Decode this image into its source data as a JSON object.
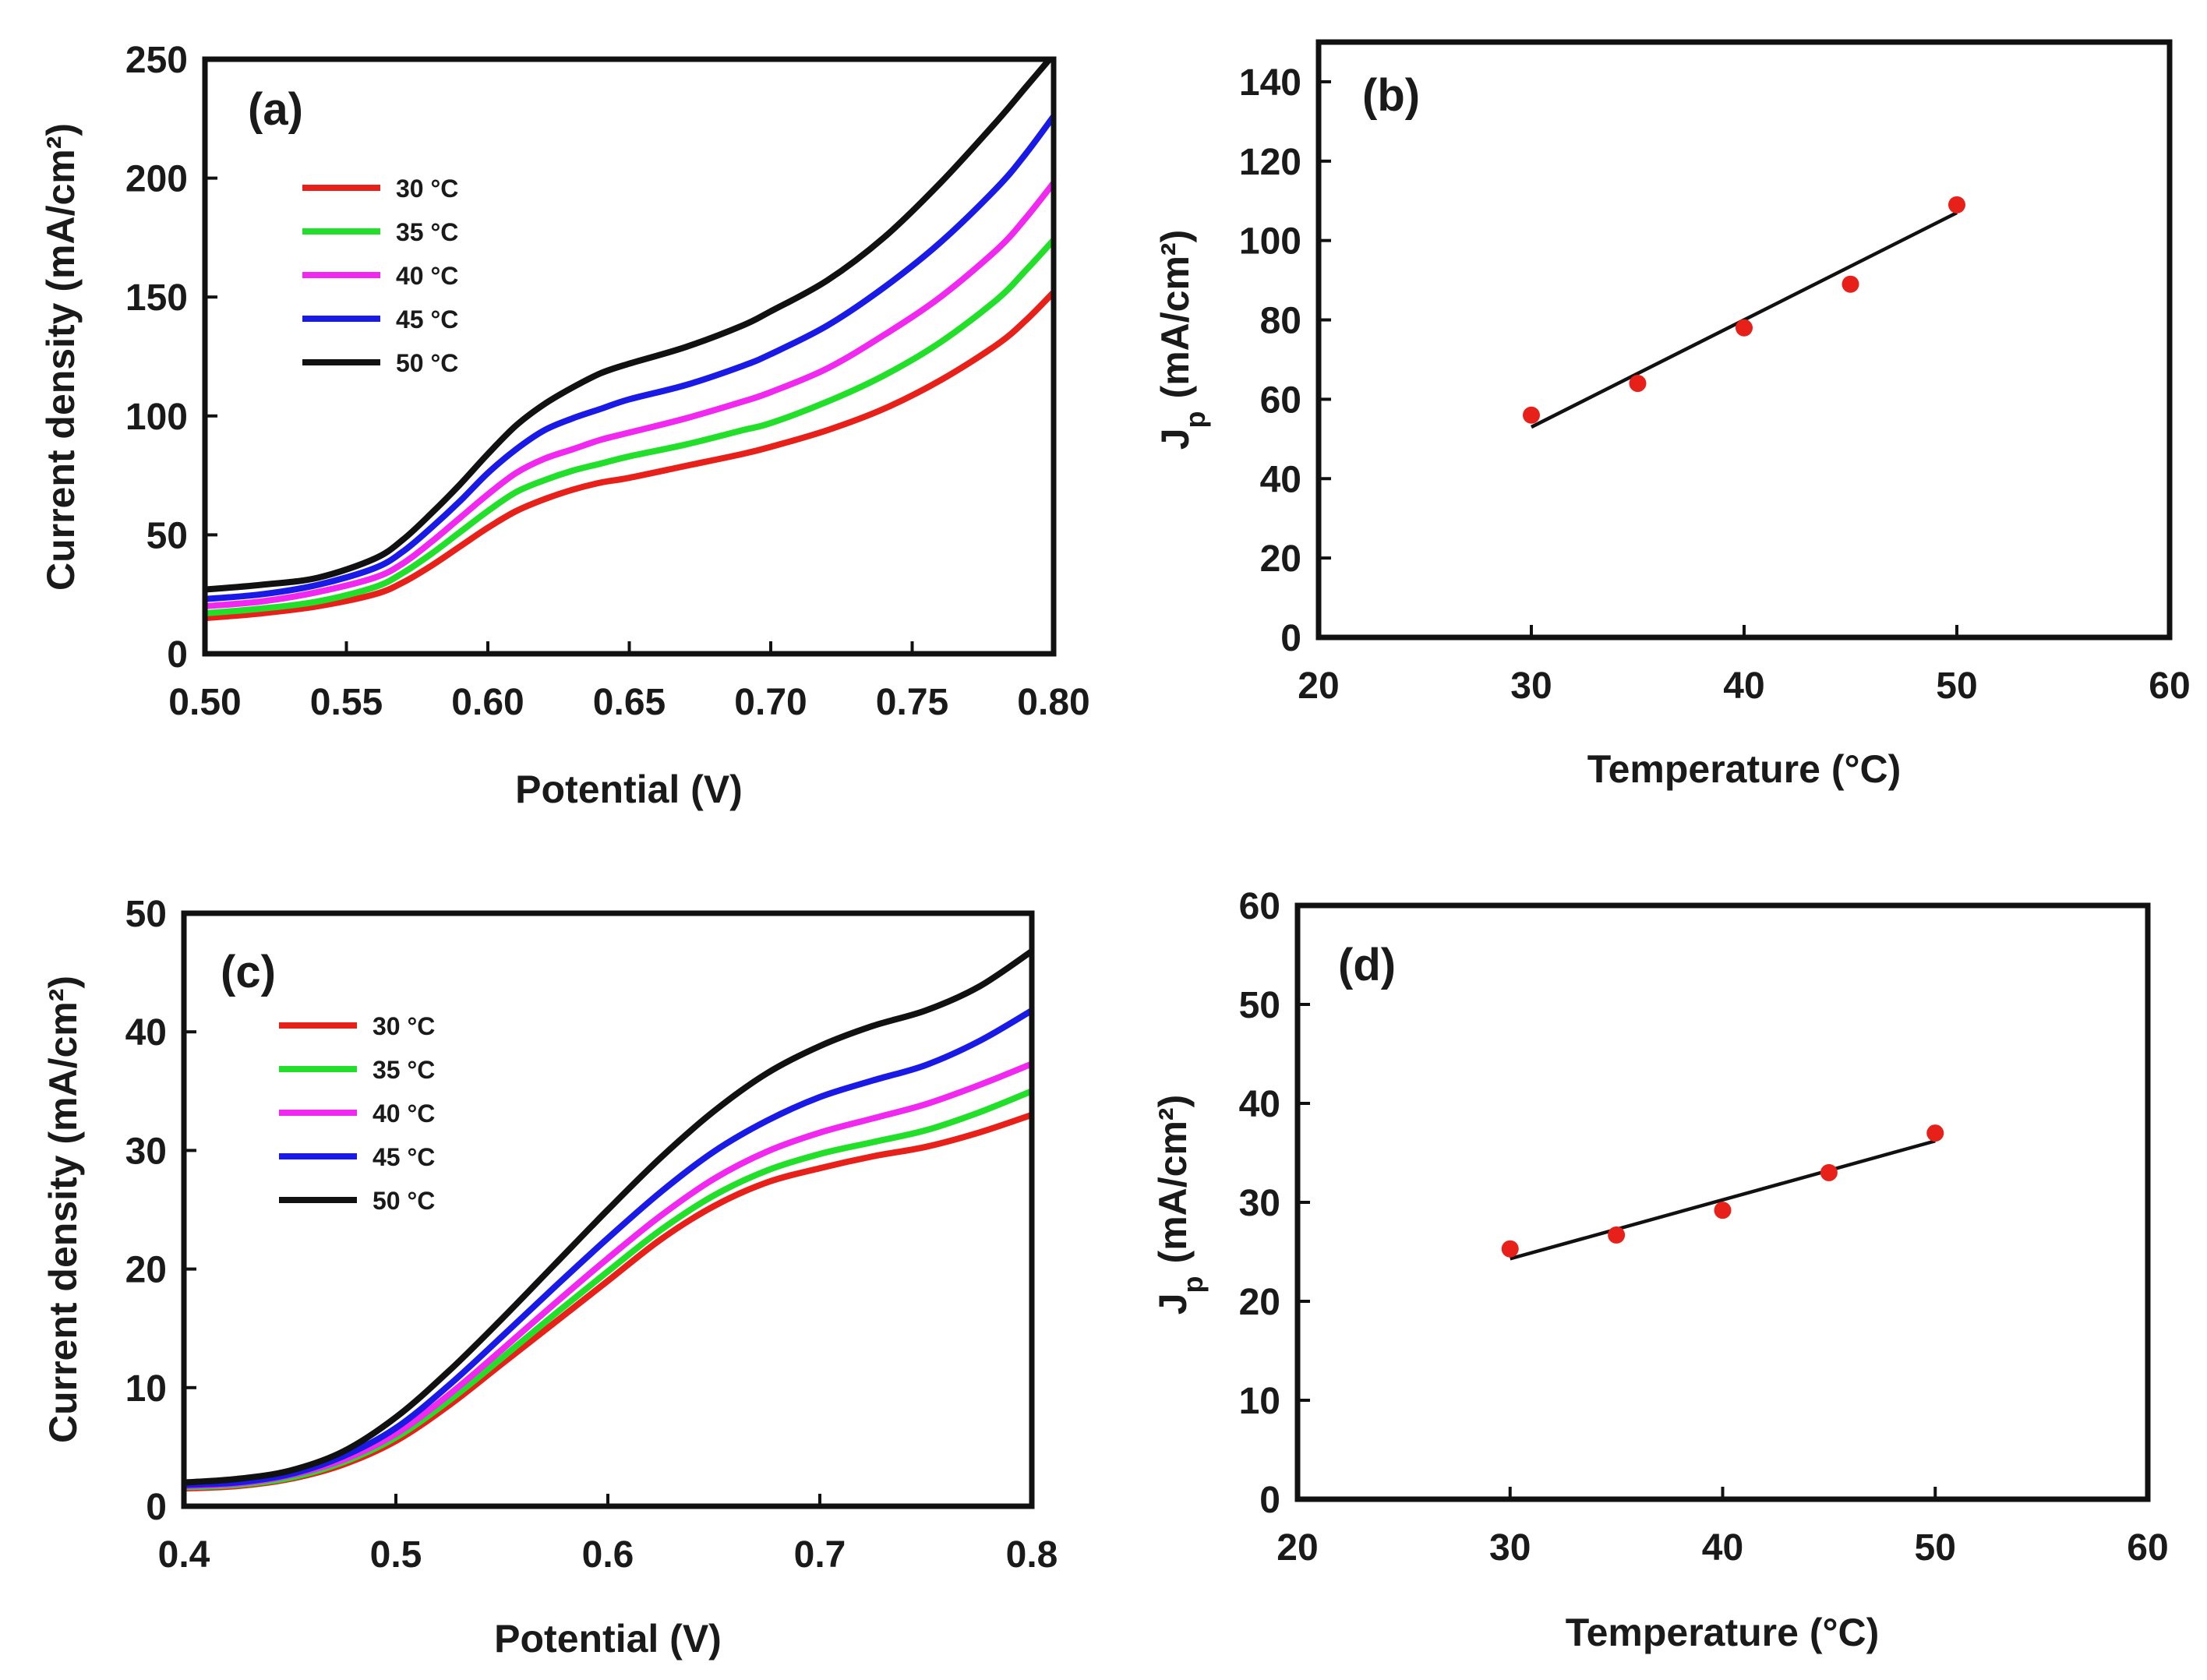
{
  "chart_data": [
    {
      "id": "a",
      "type": "line",
      "panel_label": "(a)",
      "xlabel": "Potential (V)",
      "ylabel": "Current density (mA/cm²)",
      "xlim": [
        0.5,
        0.8
      ],
      "ylim": [
        0,
        250
      ],
      "xticks": [
        0.5,
        0.55,
        0.6,
        0.65,
        0.7,
        0.75,
        0.8
      ],
      "xtick_labels": [
        "0.50",
        "0.55",
        "0.60",
        "0.65",
        "0.70",
        "0.75",
        "0.80"
      ],
      "yticks": [
        0,
        50,
        100,
        150,
        200,
        250
      ],
      "ytick_labels": [
        "0",
        "50",
        "100",
        "150",
        "200",
        "250"
      ],
      "grid": false,
      "legend_position": "upper-left",
      "x": [
        0.5,
        0.52,
        0.54,
        0.56,
        0.57,
        0.58,
        0.59,
        0.6,
        0.61,
        0.62,
        0.63,
        0.64,
        0.65,
        0.67,
        0.69,
        0.7,
        0.72,
        0.74,
        0.76,
        0.78,
        0.79,
        0.8
      ],
      "series": [
        {
          "name": "30 °C",
          "color": "#e8201a",
          "values": [
            15,
            17,
            20,
            25,
            30,
            37,
            45,
            53,
            60,
            65,
            69,
            72,
            74,
            79,
            84,
            87,
            94,
            103,
            115,
            130,
            140,
            152
          ]
        },
        {
          "name": "35 °C",
          "color": "#22e02a",
          "values": [
            17,
            19,
            22,
            28,
            34,
            42,
            51,
            60,
            68,
            73,
            77,
            80,
            83,
            88,
            94,
            97,
            106,
            117,
            131,
            149,
            161,
            174
          ]
        },
        {
          "name": "40 °C",
          "color": "#f028f0",
          "values": [
            20,
            22,
            26,
            32,
            38,
            47,
            57,
            67,
            76,
            82,
            86,
            90,
            93,
            99,
            106,
            110,
            120,
            134,
            150,
            170,
            183,
            198
          ]
        },
        {
          "name": "45 °C",
          "color": "#1a1ae6",
          "values": [
            23,
            25,
            29,
            36,
            43,
            53,
            64,
            76,
            86,
            94,
            99,
            103,
            107,
            113,
            121,
            126,
            138,
            154,
            173,
            196,
            210,
            226
          ]
        },
        {
          "name": "50 °C",
          "color": "#111111",
          "values": [
            27,
            29,
            32,
            40,
            48,
            59,
            71,
            84,
            96,
            105,
            112,
            118,
            122,
            129,
            138,
            144,
            157,
            175,
            198,
            224,
            238,
            252
          ]
        }
      ]
    },
    {
      "id": "b",
      "type": "scatter",
      "panel_label": "(b)",
      "xlabel": "Temperature (°C)",
      "ylabel_main": "J",
      "ylabel_sub": "p",
      "ylabel_rest": "(mA/cm²)",
      "xlim": [
        20,
        60
      ],
      "ylim": [
        0,
        150
      ],
      "xticks": [
        20,
        30,
        40,
        50,
        60
      ],
      "xtick_labels": [
        "20",
        "30",
        "40",
        "50",
        "60"
      ],
      "yticks": [
        0,
        20,
        40,
        60,
        80,
        100,
        120,
        140
      ],
      "ytick_labels": [
        "0",
        "20",
        "40",
        "60",
        "80",
        "100",
        "120",
        "140"
      ],
      "grid": false,
      "points": {
        "x": [
          30,
          35,
          40,
          45,
          50
        ],
        "y": [
          56,
          64,
          78,
          89,
          109
        ],
        "color": "#e8201a"
      },
      "fit_line": {
        "x": [
          30,
          50
        ],
        "y": [
          53,
          107
        ],
        "color": "#111111"
      }
    },
    {
      "id": "c",
      "type": "line",
      "panel_label": "(c)",
      "xlabel": "Potential (V)",
      "ylabel": "Current density (mA/cm²)",
      "xlim": [
        0.4,
        0.8
      ],
      "ylim": [
        0,
        50
      ],
      "xticks": [
        0.4,
        0.5,
        0.6,
        0.7,
        0.8
      ],
      "xtick_labels": [
        "0.4",
        "0.5",
        "0.6",
        "0.7",
        "0.8"
      ],
      "yticks": [
        0,
        10,
        20,
        30,
        40,
        50
      ],
      "ytick_labels": [
        "0",
        "10",
        "20",
        "30",
        "40",
        "50"
      ],
      "grid": false,
      "legend_position": "upper-left",
      "x": [
        0.4,
        0.425,
        0.45,
        0.475,
        0.5,
        0.525,
        0.55,
        0.575,
        0.6,
        0.625,
        0.65,
        0.675,
        0.7,
        0.725,
        0.75,
        0.775,
        0.8
      ],
      "series": [
        {
          "name": "30 °C",
          "color": "#e8201a",
          "values": [
            1.5,
            1.7,
            2.3,
            3.5,
            5.5,
            8.5,
            12.0,
            15.5,
            19.0,
            22.5,
            25.3,
            27.3,
            28.5,
            29.5,
            30.3,
            31.5,
            33.0
          ]
        },
        {
          "name": "35 °C",
          "color": "#22e02a",
          "values": [
            1.6,
            1.8,
            2.4,
            3.7,
            5.8,
            8.9,
            12.5,
            16.2,
            19.8,
            23.3,
            26.2,
            28.3,
            29.7,
            30.7,
            31.7,
            33.2,
            35.0
          ]
        },
        {
          "name": "40 °C",
          "color": "#f028f0",
          "values": [
            1.7,
            1.9,
            2.6,
            3.9,
            6.1,
            9.4,
            13.2,
            17.1,
            20.9,
            24.5,
            27.6,
            29.9,
            31.5,
            32.7,
            33.9,
            35.5,
            37.3
          ]
        },
        {
          "name": "45 °C",
          "color": "#1a1ae6",
          "values": [
            1.8,
            2.0,
            2.7,
            4.2,
            6.6,
            10.2,
            14.3,
            18.5,
            22.6,
            26.5,
            29.9,
            32.5,
            34.5,
            35.9,
            37.2,
            39.2,
            41.8
          ]
        },
        {
          "name": "50 °C",
          "color": "#111111",
          "values": [
            2.0,
            2.3,
            3.0,
            4.6,
            7.5,
            11.4,
            15.8,
            20.4,
            25.0,
            29.4,
            33.3,
            36.5,
            38.8,
            40.5,
            41.8,
            43.8,
            46.8
          ]
        }
      ]
    },
    {
      "id": "d",
      "type": "scatter",
      "panel_label": "(d)",
      "xlabel": "Temperature (°C)",
      "ylabel_main": "J",
      "ylabel_sub": "p",
      "ylabel_rest": "(mA/cm²)",
      "xlim": [
        20,
        60
      ],
      "ylim": [
        0,
        60
      ],
      "xticks": [
        20,
        30,
        40,
        50,
        60
      ],
      "xtick_labels": [
        "20",
        "30",
        "40",
        "50",
        "60"
      ],
      "yticks": [
        0,
        10,
        20,
        30,
        40,
        50,
        60
      ],
      "ytick_labels": [
        "0",
        "10",
        "20",
        "30",
        "40",
        "50",
        "60"
      ],
      "grid": false,
      "points": {
        "x": [
          30,
          35,
          40,
          45,
          50
        ],
        "y": [
          25.3,
          26.7,
          29.2,
          33.0,
          37.0
        ],
        "color": "#e8201a"
      },
      "fit_line": {
        "x": [
          30,
          50
        ],
        "y": [
          24.3,
          36.2
        ],
        "color": "#111111"
      }
    }
  ]
}
